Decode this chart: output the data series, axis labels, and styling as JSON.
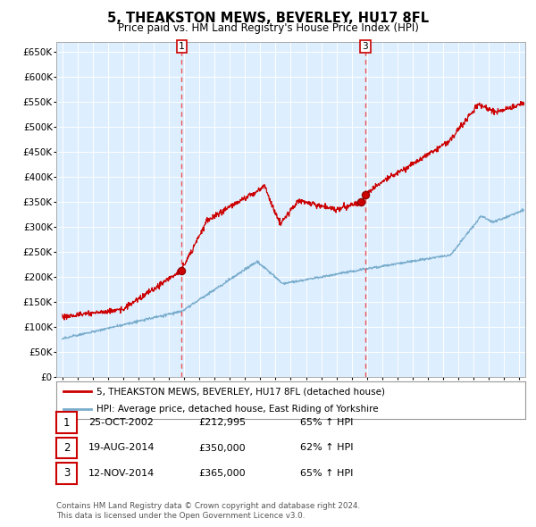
{
  "title": "5, THEAKSTON MEWS, BEVERLEY, HU17 8FL",
  "subtitle": "Price paid vs. HM Land Registry's House Price Index (HPI)",
  "legend_line1": "5, THEAKSTON MEWS, BEVERLEY, HU17 8FL (detached house)",
  "legend_line2": "HPI: Average price, detached house, East Riding of Yorkshire",
  "footer_line1": "Contains HM Land Registry data © Crown copyright and database right 2024.",
  "footer_line2": "This data is licensed under the Open Government Licence v3.0.",
  "table_rows": [
    {
      "num": "1",
      "date": "25-OCT-2002",
      "price": "£212,995",
      "hpi": "65% ↑ HPI"
    },
    {
      "num": "2",
      "date": "19-AUG-2014",
      "price": "£350,000",
      "hpi": "62% ↑ HPI"
    },
    {
      "num": "3",
      "date": "12-NOV-2014",
      "price": "£365,000",
      "hpi": "65% ↑ HPI"
    }
  ],
  "red_line_color": "#cc0000",
  "blue_line_color": "#7aadcc",
  "bg_color": "#ffffff",
  "plot_bg": "#ddeeff",
  "grid_color": "#ffffff",
  "vline_color": "#ee4444",
  "marker_color": "#cc0000",
  "ylim": [
    0,
    670000
  ],
  "yticks": [
    0,
    50000,
    100000,
    150000,
    200000,
    250000,
    300000,
    350000,
    400000,
    450000,
    500000,
    550000,
    600000,
    650000
  ],
  "sale1": {
    "year": 2002.82,
    "price": 212995
  },
  "sale2": {
    "year": 2014.63,
    "price": 350000
  },
  "sale3": {
    "year": 2014.9,
    "price": 365000
  },
  "vline1_x": 2002.82,
  "vline3_x": 2014.9,
  "annotation1_label": "1",
  "annotation3_label": "3",
  "xmin": 1994.6,
  "xmax": 2025.4
}
